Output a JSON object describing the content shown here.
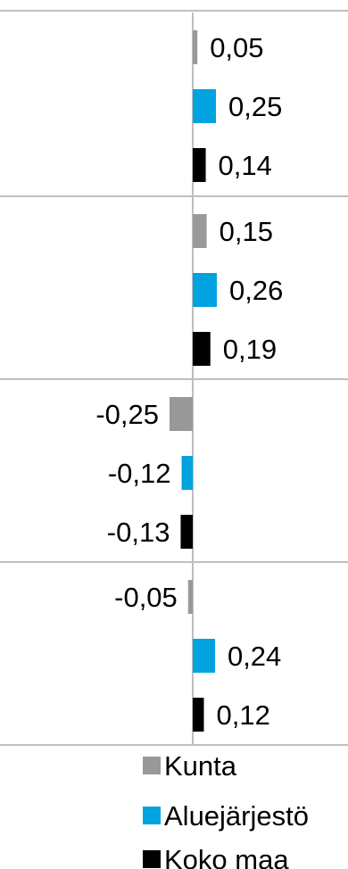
{
  "chart_data": {
    "type": "bar",
    "orientation": "horizontal",
    "groups": 4,
    "series": [
      {
        "name": "Kunta",
        "color": "#999999",
        "values": [
          0.05,
          0.15,
          -0.25,
          -0.05
        ]
      },
      {
        "name": "Aluejärjestö",
        "color": "#00a2e0",
        "values": [
          0.25,
          0.26,
          -0.12,
          0.24
        ]
      },
      {
        "name": "Koko maa",
        "color": "#000000",
        "values": [
          0.14,
          0.19,
          -0.13,
          0.12
        ]
      }
    ],
    "data_labels": [
      [
        "0,05",
        "0,25",
        "0,14"
      ],
      [
        "0,15",
        "0,26",
        "0,19"
      ],
      [
        "-0,25",
        "-0,12",
        "-0,13"
      ],
      [
        "-0,05",
        "0,24",
        "0,12"
      ]
    ],
    "legend": {
      "position": "bottom",
      "entries": [
        "Kunta",
        "Aluejärjestö",
        "Koko maa"
      ]
    },
    "grid": true
  }
}
